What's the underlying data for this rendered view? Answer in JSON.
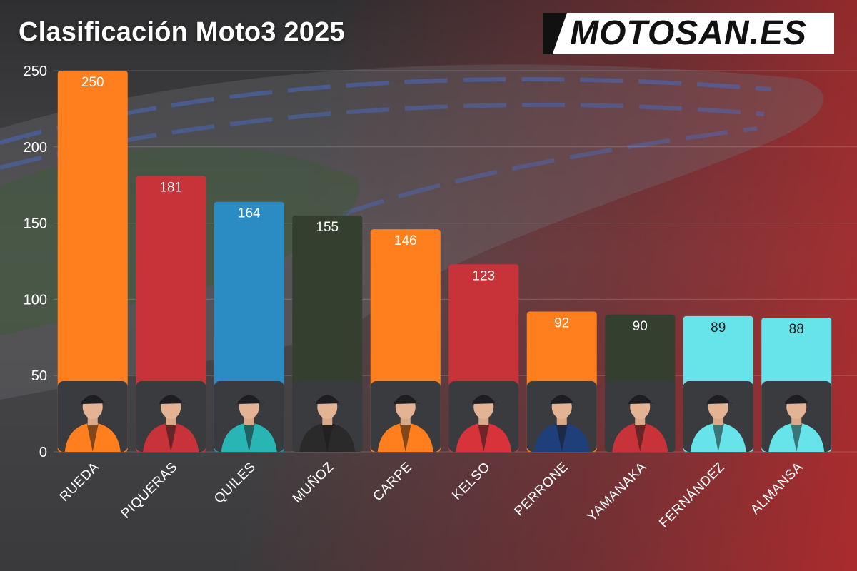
{
  "header": {
    "title": "Clasificación Moto3 2025",
    "logo_text": "MOTOSAN.ES"
  },
  "chart_data": {
    "type": "bar",
    "title": "Clasificación Moto3 2025",
    "xlabel": "",
    "ylabel": "",
    "ylim": [
      0,
      250
    ],
    "yticks": [
      0,
      50,
      100,
      150,
      200,
      250
    ],
    "grid": true,
    "categories": [
      "RUEDA",
      "PIQUERAS",
      "QUILES",
      "MUÑOZ",
      "CARPE",
      "KELSO",
      "PERRONE",
      "YAMANAKA",
      "FERNÁNDEZ",
      "ALMANSA"
    ],
    "values": [
      250,
      181,
      164,
      155,
      146,
      123,
      92,
      90,
      89,
      88
    ],
    "colors": [
      "#ff7f1e",
      "#c8333a",
      "#2a8cc2",
      "#353f30",
      "#ff7f1e",
      "#c8333a",
      "#ff7f1e",
      "#353f30",
      "#66e4ea",
      "#66e4ea"
    ],
    "label_colors": [
      "#ffffff",
      "#ffffff",
      "#ffffff",
      "#ffffff",
      "#ffffff",
      "#ffffff",
      "#ffffff",
      "#ffffff",
      "#1a1a1a",
      "#1a1a1a"
    ],
    "rider_icons": [
      "rider-portrait-icon",
      "rider-portrait-icon",
      "rider-portrait-icon",
      "rider-portrait-icon",
      "rider-portrait-icon",
      "rider-portrait-icon",
      "rider-portrait-icon",
      "rider-portrait-icon",
      "rider-portrait-icon",
      "rider-portrait-icon"
    ],
    "rider_suit_colors": [
      "#ff7f1e",
      "#c8333a",
      "#2ab5b5",
      "#2a2a2a",
      "#ff7f1e",
      "#d8333a",
      "#1f3f7a",
      "#c8333a",
      "#66e4ea",
      "#66e4ea"
    ]
  }
}
